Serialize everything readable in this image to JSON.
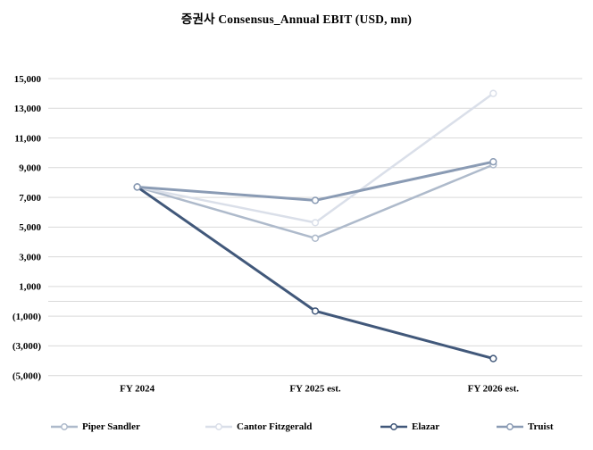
{
  "page": {
    "title": "증권사 Consensus_Annual EBIT (USD, mn)"
  },
  "chart_data": {
    "type": "line",
    "title": "증권사 Consensus_Annual EBIT (USD, mn)",
    "categories": [
      "FY 2024",
      "FY 2025 est.",
      "FY 2026 est."
    ],
    "series": [
      {
        "name": "Piper Sandler",
        "color": "#AEBACB",
        "values": [
          7700,
          4250,
          9200
        ]
      },
      {
        "name": "Cantor Fitzgerald",
        "color": "#DADFE9",
        "values": [
          7700,
          5300,
          14000
        ]
      },
      {
        "name": "Elazar",
        "color": "#41587A",
        "values": [
          7700,
          -650,
          -3850
        ]
      },
      {
        "name": "Truist",
        "color": "#8A9BB4",
        "values": [
          7700,
          6800,
          9400
        ]
      }
    ],
    "ylim": [
      -5000,
      15000
    ],
    "ytick_step": 2000,
    "ytick_values": [
      15000,
      13000,
      11000,
      9000,
      7000,
      5000,
      3000,
      1000,
      -1000,
      -3000,
      -5000
    ],
    "ytick_labels": [
      "15,000",
      "13,000",
      "11,000",
      "9,000",
      "7,000",
      "5,000",
      "3,000",
      "1,000",
      "(1,000)",
      "(3,000)",
      "(5,000)"
    ],
    "negative_format": "parentheses",
    "grid": "horizontal",
    "gridline_color": "#D9D9D9",
    "marker": "open-circle",
    "legend_position": "bottom"
  }
}
